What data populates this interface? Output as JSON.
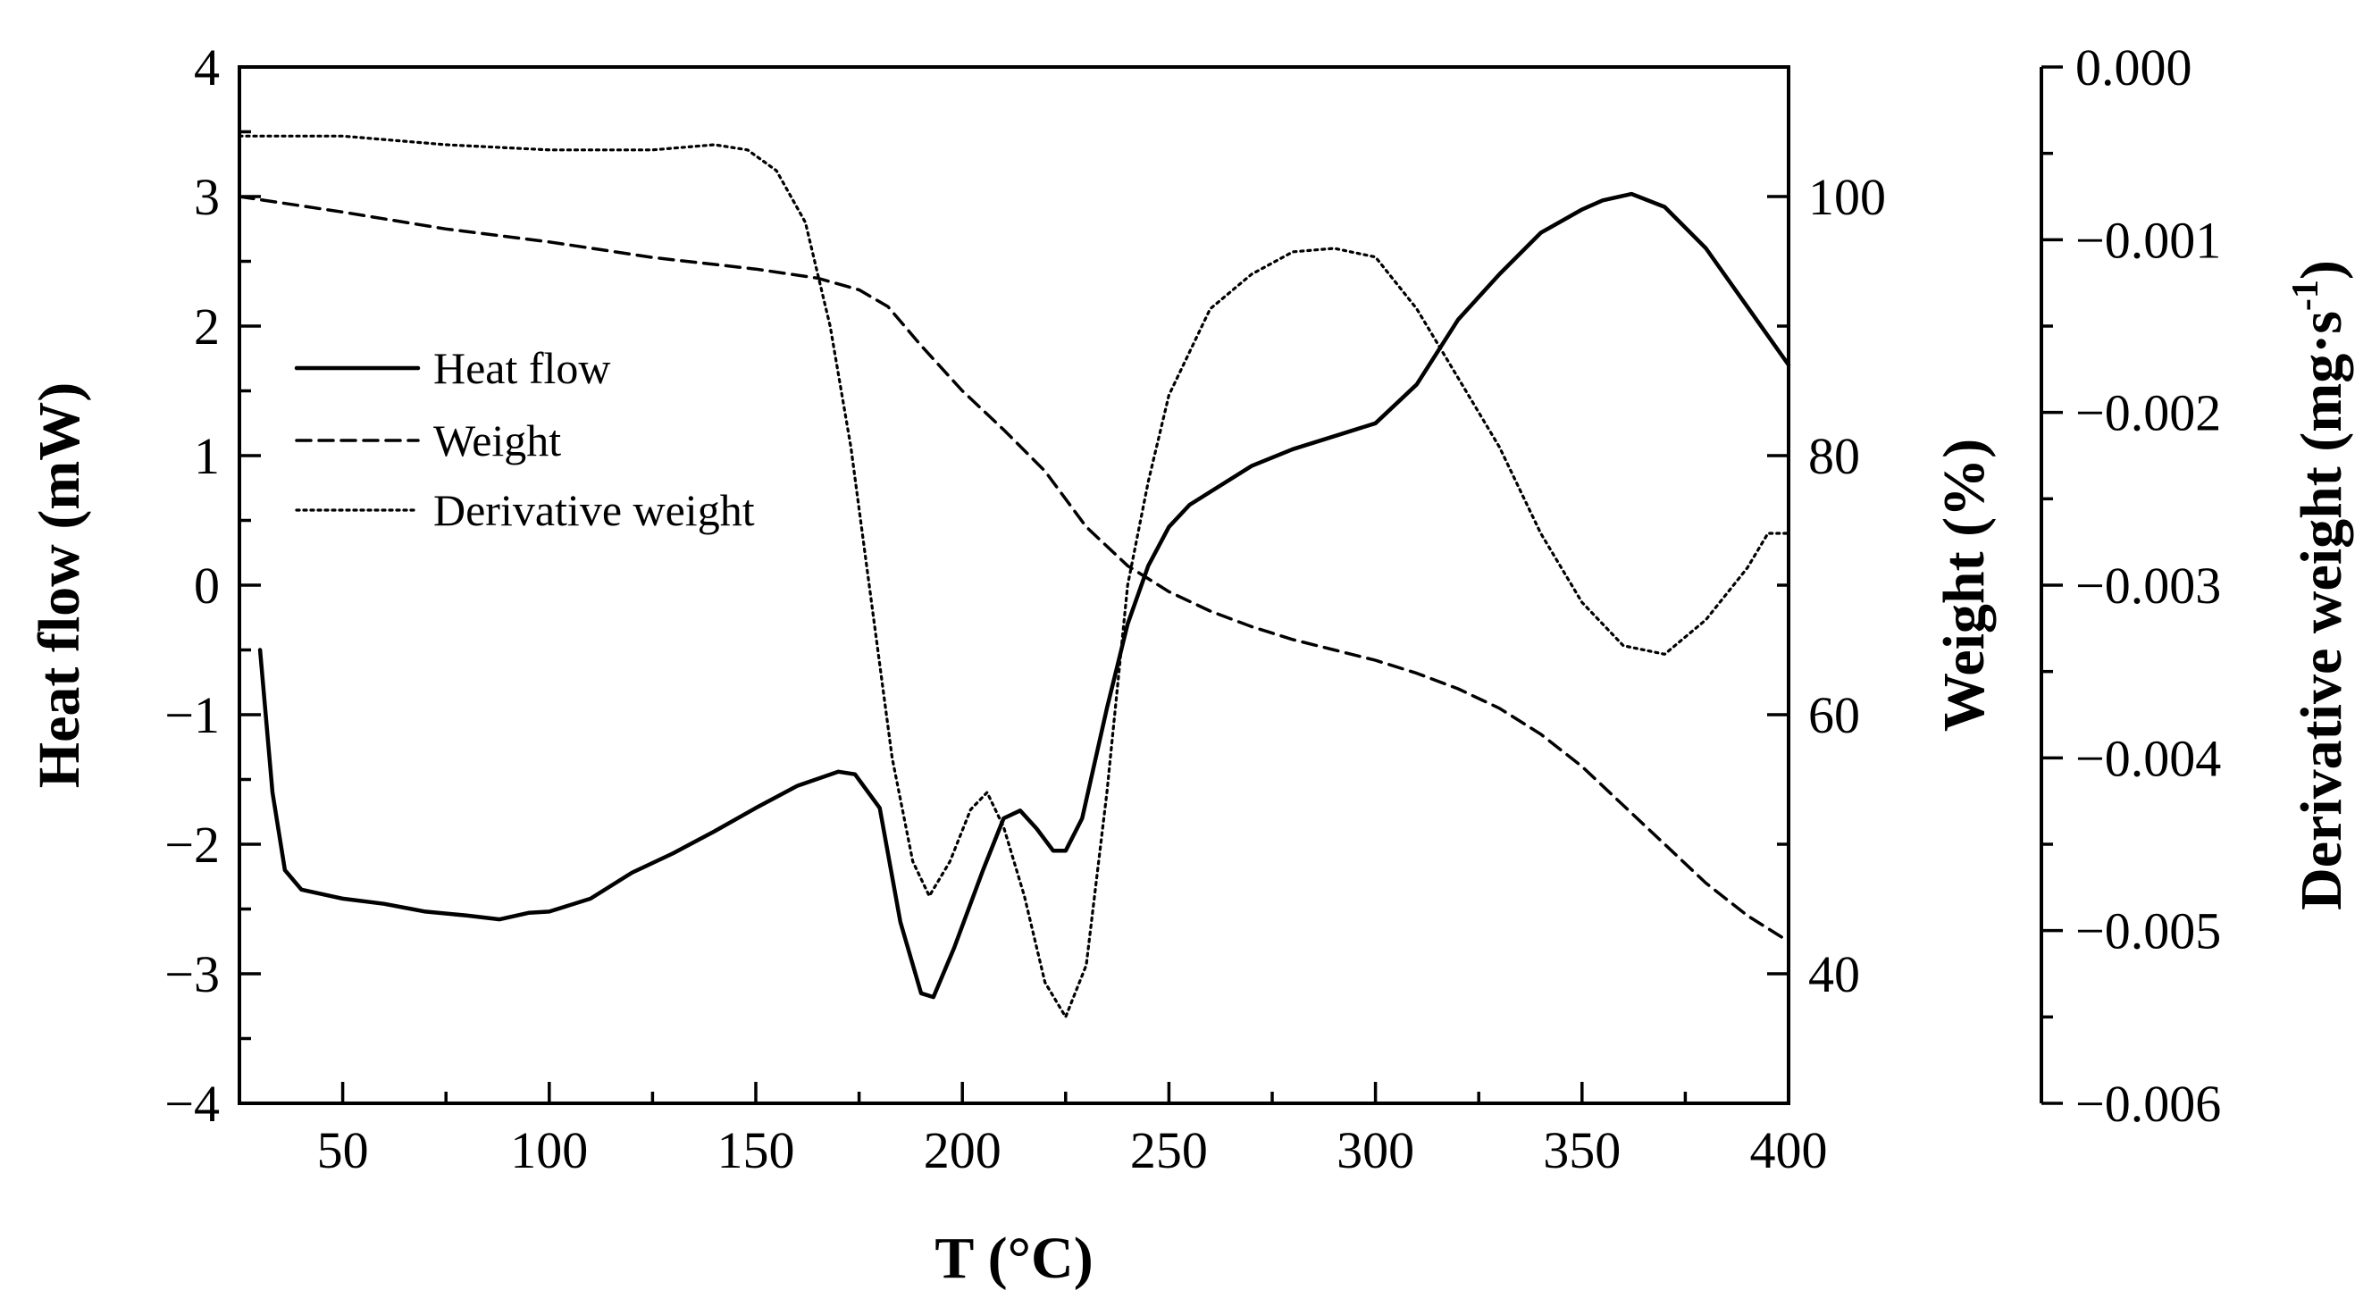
{
  "chart_data": {
    "type": "line",
    "title": "",
    "xlabel": "T (°C)",
    "x_ticks": [
      50,
      100,
      150,
      200,
      250,
      300,
      350,
      400
    ],
    "xlim": [
      25,
      400
    ],
    "axes": [
      {
        "id": "heat",
        "label": "Heat flow (mW)",
        "side": "left",
        "ylim": [
          -4,
          4
        ],
        "ticks": [
          -4,
          -3,
          -2,
          -1,
          0,
          1,
          2,
          3,
          4
        ],
        "tick_labels": [
          "−4",
          "−3",
          "−2",
          "−1",
          "0",
          "1",
          "2",
          "3",
          "4"
        ]
      },
      {
        "id": "weight",
        "label": "Weight (%)",
        "side": "right",
        "ylim": [
          30,
          110
        ],
        "ticks": [
          40,
          60,
          80,
          100
        ],
        "tick_labels": [
          "40",
          "60",
          "80",
          "100"
        ]
      },
      {
        "id": "deriv",
        "label_main": "Derivative weight (mg·s",
        "label_sup": "-1",
        "label_end": ")",
        "side": "right-outer",
        "ylim": [
          -0.006,
          0.0
        ],
        "ticks": [
          -0.006,
          -0.005,
          -0.004,
          -0.003,
          -0.002,
          -0.001,
          0.0
        ],
        "tick_labels": [
          "−0.006",
          "−0.005",
          "−0.004",
          "−0.003",
          "−0.002",
          "−0.001",
          "0.000"
        ]
      }
    ],
    "legend": {
      "position": "center-left",
      "entries": [
        "Heat flow",
        "Weight",
        "Derivative weight"
      ]
    },
    "series": [
      {
        "name": "Heat flow",
        "axis": "heat",
        "style": "solid",
        "points": [
          [
            30,
            -0.5
          ],
          [
            33,
            -1.6
          ],
          [
            36,
            -2.2
          ],
          [
            40,
            -2.35
          ],
          [
            50,
            -2.42
          ],
          [
            60,
            -2.46
          ],
          [
            70,
            -2.52
          ],
          [
            80,
            -2.55
          ],
          [
            88,
            -2.58
          ],
          [
            95,
            -2.53
          ],
          [
            100,
            -2.52
          ],
          [
            110,
            -2.42
          ],
          [
            120,
            -2.22
          ],
          [
            130,
            -2.07
          ],
          [
            140,
            -1.9
          ],
          [
            150,
            -1.72
          ],
          [
            160,
            -1.55
          ],
          [
            170,
            -1.44
          ],
          [
            174,
            -1.46
          ],
          [
            180,
            -1.72
          ],
          [
            185,
            -2.6
          ],
          [
            190,
            -3.15
          ],
          [
            193,
            -3.18
          ],
          [
            198,
            -2.8
          ],
          [
            205,
            -2.2
          ],
          [
            210,
            -1.8
          ],
          [
            214,
            -1.74
          ],
          [
            218,
            -1.88
          ],
          [
            222,
            -2.05
          ],
          [
            225,
            -2.05
          ],
          [
            229,
            -1.8
          ],
          [
            235,
            -0.95
          ],
          [
            240,
            -0.3
          ],
          [
            245,
            0.15
          ],
          [
            250,
            0.45
          ],
          [
            255,
            0.62
          ],
          [
            260,
            0.72
          ],
          [
            270,
            0.92
          ],
          [
            280,
            1.05
          ],
          [
            290,
            1.15
          ],
          [
            300,
            1.25
          ],
          [
            310,
            1.55
          ],
          [
            320,
            2.05
          ],
          [
            330,
            2.4
          ],
          [
            340,
            2.72
          ],
          [
            350,
            2.9
          ],
          [
            355,
            2.97
          ],
          [
            362,
            3.02
          ],
          [
            370,
            2.92
          ],
          [
            380,
            2.6
          ],
          [
            390,
            2.15
          ],
          [
            400,
            1.7
          ]
        ]
      },
      {
        "name": "Weight",
        "axis": "weight",
        "style": "dashed",
        "points": [
          [
            25,
            100
          ],
          [
            50,
            98.8
          ],
          [
            75,
            97.5
          ],
          [
            100,
            96.5
          ],
          [
            125,
            95.3
          ],
          [
            150,
            94.4
          ],
          [
            165,
            93.7
          ],
          [
            175,
            92.8
          ],
          [
            182,
            91.5
          ],
          [
            190,
            88.5
          ],
          [
            200,
            85.0
          ],
          [
            210,
            82.0
          ],
          [
            220,
            78.8
          ],
          [
            230,
            74.5
          ],
          [
            240,
            71.5
          ],
          [
            250,
            69.5
          ],
          [
            260,
            68.0
          ],
          [
            270,
            66.8
          ],
          [
            280,
            65.8
          ],
          [
            290,
            65.0
          ],
          [
            300,
            64.2
          ],
          [
            310,
            63.2
          ],
          [
            320,
            62.0
          ],
          [
            330,
            60.5
          ],
          [
            340,
            58.5
          ],
          [
            350,
            56.0
          ],
          [
            360,
            53.0
          ],
          [
            370,
            50.0
          ],
          [
            380,
            47.0
          ],
          [
            390,
            44.5
          ],
          [
            400,
            42.5
          ]
        ]
      },
      {
        "name": "Derivative weight",
        "axis": "deriv",
        "style": "dotted",
        "points": [
          [
            25,
            -0.0004
          ],
          [
            50,
            -0.0004
          ],
          [
            75,
            -0.00045
          ],
          [
            100,
            -0.00048
          ],
          [
            125,
            -0.00048
          ],
          [
            140,
            -0.00045
          ],
          [
            148,
            -0.00048
          ],
          [
            155,
            -0.0006
          ],
          [
            162,
            -0.0009
          ],
          [
            168,
            -0.0015
          ],
          [
            173,
            -0.0022
          ],
          [
            178,
            -0.0031
          ],
          [
            183,
            -0.004
          ],
          [
            188,
            -0.0046
          ],
          [
            192,
            -0.0048
          ],
          [
            197,
            -0.0046
          ],
          [
            202,
            -0.0043
          ],
          [
            206,
            -0.0042
          ],
          [
            210,
            -0.0044
          ],
          [
            215,
            -0.0048
          ],
          [
            220,
            -0.0053
          ],
          [
            225,
            -0.0055
          ],
          [
            230,
            -0.0052
          ],
          [
            235,
            -0.0042
          ],
          [
            240,
            -0.003
          ],
          [
            245,
            -0.0024
          ],
          [
            250,
            -0.0019
          ],
          [
            260,
            -0.0014
          ],
          [
            270,
            -0.0012
          ],
          [
            280,
            -0.00107
          ],
          [
            290,
            -0.00105
          ],
          [
            300,
            -0.0011
          ],
          [
            310,
            -0.0014
          ],
          [
            320,
            -0.0018
          ],
          [
            330,
            -0.0022
          ],
          [
            340,
            -0.0027
          ],
          [
            350,
            -0.0031
          ],
          [
            360,
            -0.00335
          ],
          [
            370,
            -0.0034
          ],
          [
            380,
            -0.0032
          ],
          [
            390,
            -0.0029
          ],
          [
            395,
            -0.0027
          ],
          [
            400,
            -0.0027
          ]
        ]
      }
    ]
  }
}
